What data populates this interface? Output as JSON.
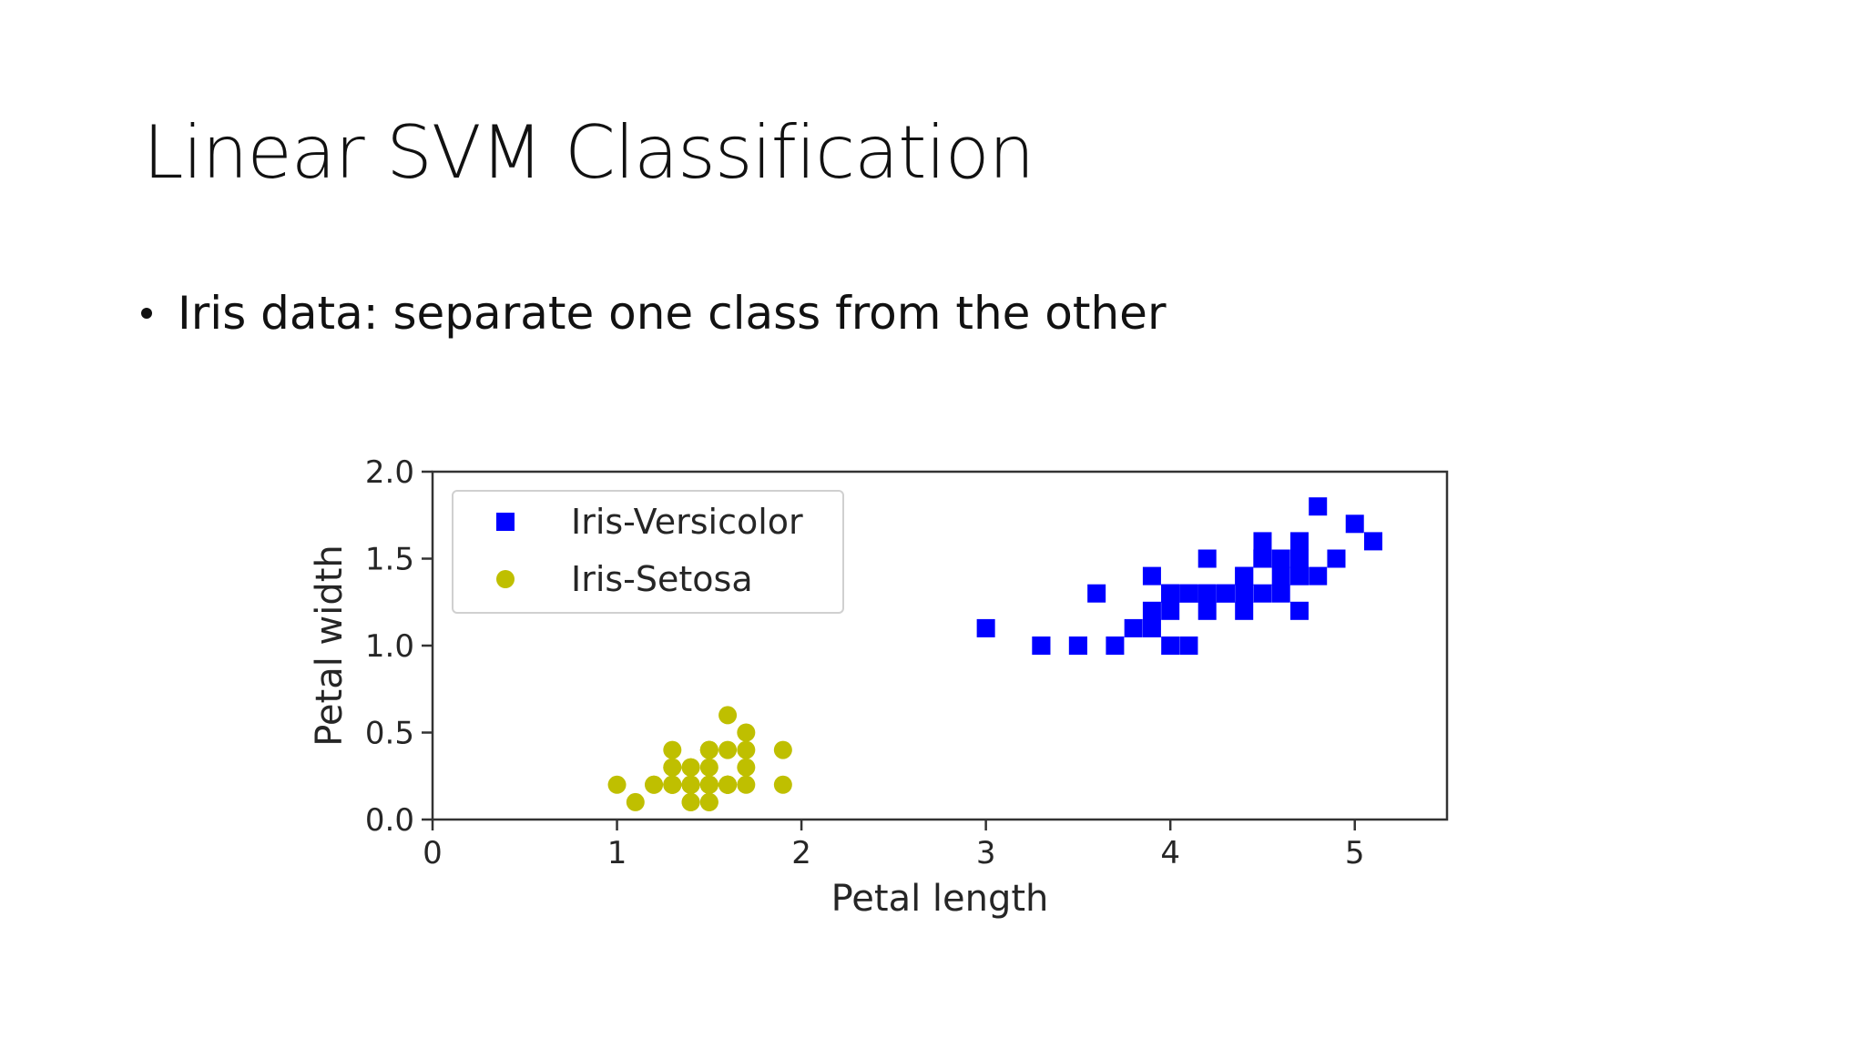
{
  "slide": {
    "title": "Linear SVM Classification",
    "bullets": [
      "Iris data: separate one class from the other"
    ]
  },
  "chart_data": {
    "type": "scatter",
    "xlabel": "Petal length",
    "ylabel": "Petal width",
    "xlim": [
      0,
      5.5
    ],
    "ylim": [
      0,
      2.0
    ],
    "xticks": [
      "0",
      "1",
      "2",
      "3",
      "4",
      "5"
    ],
    "yticks": [
      "0.0",
      "0.5",
      "1.0",
      "1.5",
      "2.0"
    ],
    "grid": false,
    "legend": "upper-left",
    "series": [
      {
        "name": "Iris-Versicolor",
        "marker": "square",
        "color": "#0000ff",
        "points": [
          [
            4.7,
            1.4
          ],
          [
            4.5,
            1.5
          ],
          [
            4.9,
            1.5
          ],
          [
            4.0,
            1.3
          ],
          [
            4.6,
            1.5
          ],
          [
            4.5,
            1.3
          ],
          [
            4.7,
            1.6
          ],
          [
            3.3,
            1.0
          ],
          [
            4.6,
            1.3
          ],
          [
            3.9,
            1.4
          ],
          [
            3.5,
            1.0
          ],
          [
            4.2,
            1.5
          ],
          [
            4.0,
            1.0
          ],
          [
            4.7,
            1.4
          ],
          [
            3.6,
            1.3
          ],
          [
            4.4,
            1.4
          ],
          [
            4.5,
            1.5
          ],
          [
            4.1,
            1.0
          ],
          [
            4.5,
            1.5
          ],
          [
            3.9,
            1.1
          ],
          [
            4.8,
            1.8
          ],
          [
            4.0,
            1.3
          ],
          [
            4.9,
            1.5
          ],
          [
            4.7,
            1.2
          ],
          [
            4.3,
            1.3
          ],
          [
            4.4,
            1.4
          ],
          [
            4.8,
            1.4
          ],
          [
            5.0,
            1.7
          ],
          [
            4.5,
            1.5
          ],
          [
            3.5,
            1.0
          ],
          [
            3.8,
            1.1
          ],
          [
            3.7,
            1.0
          ],
          [
            3.9,
            1.2
          ],
          [
            5.1,
            1.6
          ],
          [
            4.5,
            1.5
          ],
          [
            4.5,
            1.6
          ],
          [
            4.7,
            1.5
          ],
          [
            4.4,
            1.3
          ],
          [
            4.1,
            1.3
          ],
          [
            4.0,
            1.3
          ],
          [
            4.4,
            1.2
          ],
          [
            4.6,
            1.4
          ],
          [
            4.0,
            1.2
          ],
          [
            3.3,
            1.0
          ],
          [
            4.2,
            1.3
          ],
          [
            4.2,
            1.2
          ],
          [
            4.2,
            1.3
          ],
          [
            4.3,
            1.3
          ],
          [
            3.0,
            1.1
          ],
          [
            4.1,
            1.3
          ]
        ]
      },
      {
        "name": "Iris-Setosa",
        "marker": "circle",
        "color": "#bfbf00",
        "points": [
          [
            1.4,
            0.2
          ],
          [
            1.4,
            0.2
          ],
          [
            1.3,
            0.2
          ],
          [
            1.5,
            0.2
          ],
          [
            1.4,
            0.2
          ],
          [
            1.7,
            0.4
          ],
          [
            1.4,
            0.3
          ],
          [
            1.5,
            0.2
          ],
          [
            1.4,
            0.2
          ],
          [
            1.5,
            0.1
          ],
          [
            1.5,
            0.2
          ],
          [
            1.6,
            0.2
          ],
          [
            1.4,
            0.1
          ],
          [
            1.1,
            0.1
          ],
          [
            1.2,
            0.2
          ],
          [
            1.5,
            0.4
          ],
          [
            1.3,
            0.4
          ],
          [
            1.4,
            0.3
          ],
          [
            1.7,
            0.3
          ],
          [
            1.5,
            0.3
          ],
          [
            1.7,
            0.2
          ],
          [
            1.5,
            0.4
          ],
          [
            1.0,
            0.2
          ],
          [
            1.7,
            0.5
          ],
          [
            1.9,
            0.2
          ],
          [
            1.6,
            0.2
          ],
          [
            1.6,
            0.4
          ],
          [
            1.5,
            0.2
          ],
          [
            1.4,
            0.2
          ],
          [
            1.6,
            0.2
          ],
          [
            1.6,
            0.2
          ],
          [
            1.5,
            0.4
          ],
          [
            1.5,
            0.1
          ],
          [
            1.4,
            0.2
          ],
          [
            1.5,
            0.2
          ],
          [
            1.2,
            0.2
          ],
          [
            1.3,
            0.2
          ],
          [
            1.4,
            0.1
          ],
          [
            1.3,
            0.2
          ],
          [
            1.5,
            0.2
          ],
          [
            1.3,
            0.3
          ],
          [
            1.3,
            0.3
          ],
          [
            1.3,
            0.2
          ],
          [
            1.6,
            0.6
          ],
          [
            1.9,
            0.4
          ],
          [
            1.4,
            0.3
          ],
          [
            1.6,
            0.2
          ],
          [
            1.4,
            0.2
          ],
          [
            1.5,
            0.2
          ],
          [
            1.4,
            0.2
          ]
        ]
      }
    ]
  }
}
